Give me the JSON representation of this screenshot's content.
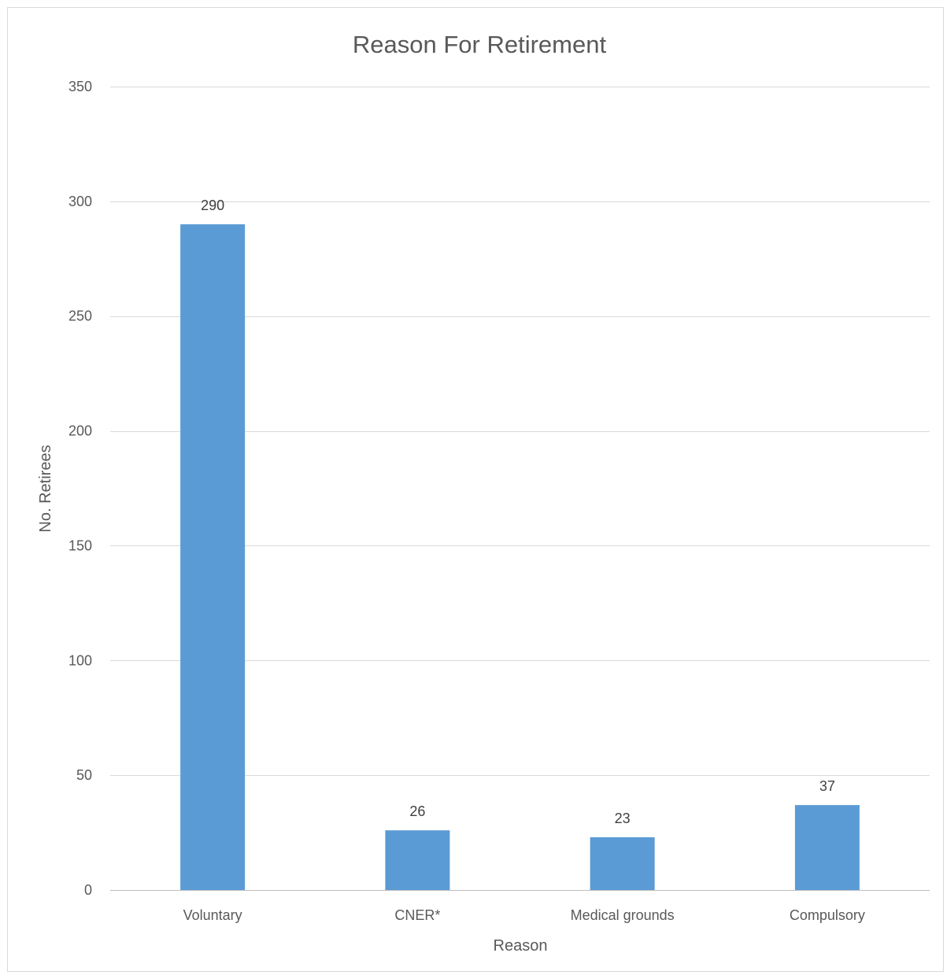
{
  "chart_data": {
    "type": "bar",
    "title": "Reason For Retirement",
    "xlabel": "Reason",
    "ylabel": "No. Retirees",
    "categories": [
      "Voluntary",
      "CNER*",
      "Medical grounds",
      "Compulsory"
    ],
    "values": [
      290,
      26,
      23,
      37
    ],
    "data_labels": [
      "290",
      "26",
      "23",
      "37"
    ],
    "ylim": [
      0,
      350
    ],
    "yticks": [
      0,
      50,
      100,
      150,
      200,
      250,
      300,
      350
    ],
    "grid": true,
    "legend": "none",
    "bar_color": "#5b9bd5"
  }
}
